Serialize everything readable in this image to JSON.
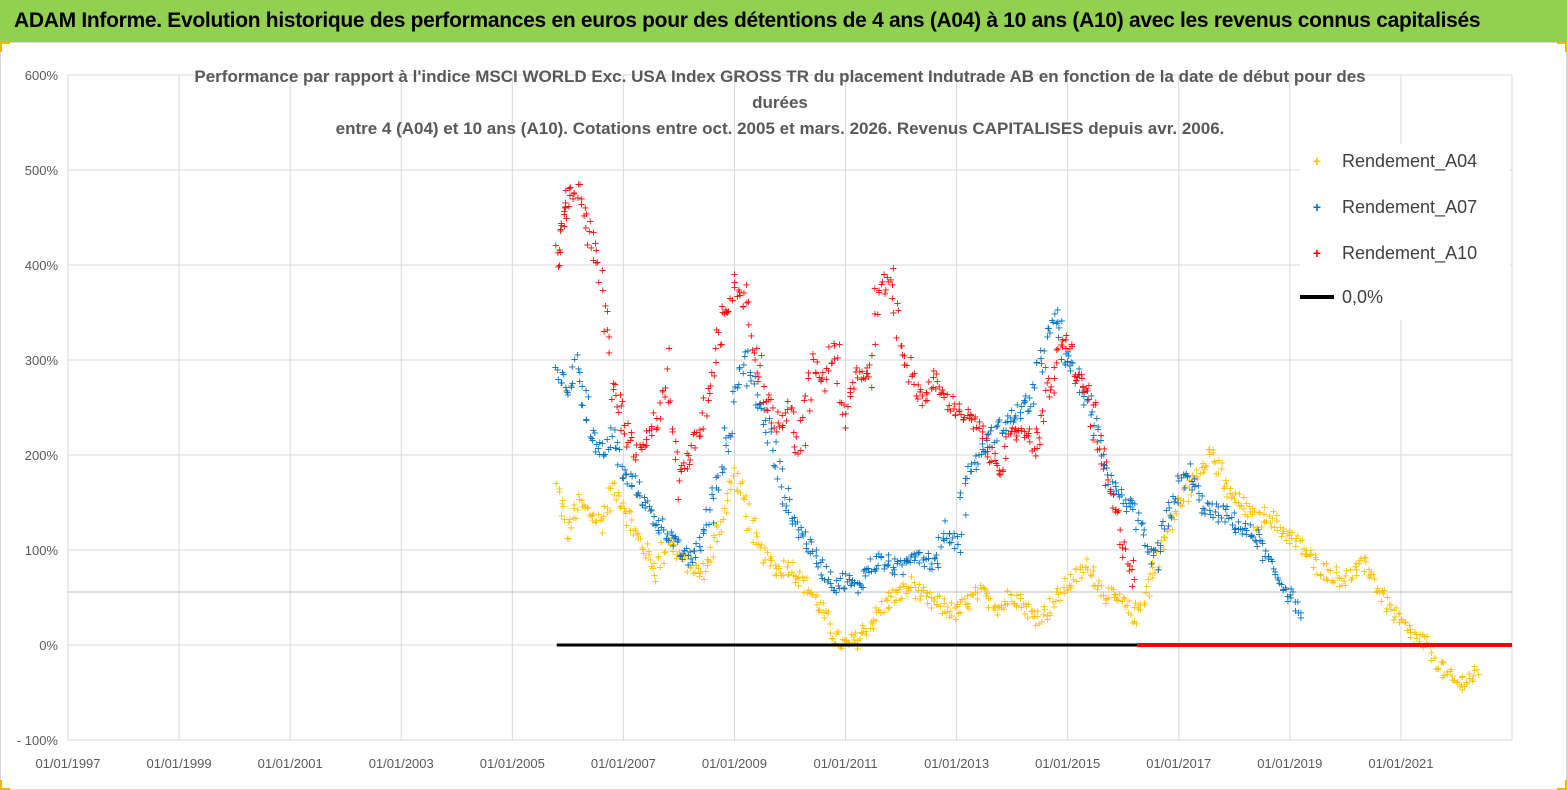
{
  "banner": {
    "title": "ADAM Informe. Evolution historique des performances en euros pour des détentions de 4 ans (A04) à 10 ans (A10) avec les revenus connus capitalisés"
  },
  "colors": {
    "banner_bg": "#92d050",
    "a04": "#ffc000",
    "a07": "#0070c0",
    "a10": "#ff0000",
    "zero": "#000000",
    "grid": "#d9d9d9"
  },
  "chart_data": {
    "type": "scatter",
    "title_lines": [
      "Performance par rapport à l'indice MSCI WORLD Exc. USA Index GROSS TR  du placement Indutrade AB en fonction de la date de début pour des",
      "durées",
      "entre 4 (A04) et 10 ans (A10). Cotations entre oct. 2005 et mars. 2026. Revenus CAPITALISES depuis avr. 2006."
    ],
    "x_ticks": [
      "01/01/1997",
      "01/01/1999",
      "01/01/2001",
      "01/01/2003",
      "01/01/2005",
      "01/01/2007",
      "01/01/2009",
      "01/01/2011",
      "01/01/2013",
      "01/01/2015",
      "01/01/2017",
      "01/01/2019",
      "01/01/2021"
    ],
    "xlim": [
      1997.0,
      2023.0
    ],
    "y_ticks": [
      "600%",
      "500%",
      "400%",
      "300%",
      "200%",
      "100%",
      "0%",
      "- 100%"
    ],
    "ylim": [
      -100,
      600
    ],
    "legend": [
      "Rendement_A04",
      "Rendement_A07",
      "Rendement_A10",
      "0,0%"
    ],
    "series": [
      {
        "name": "Rendement_A04",
        "x": [
          2005.8,
          2006.0,
          2006.2,
          2006.4,
          2006.6,
          2006.8,
          2007.0,
          2007.2,
          2007.4,
          2007.6,
          2007.8,
          2008.0,
          2008.2,
          2008.4,
          2008.6,
          2008.8,
          2009.0,
          2009.2,
          2009.4,
          2009.6,
          2009.8,
          2010.0,
          2010.2,
          2010.4,
          2010.6,
          2010.8,
          2011.0,
          2011.2,
          2011.4,
          2011.6,
          2011.8,
          2012.0,
          2012.2,
          2012.4,
          2012.6,
          2012.8,
          2013.0,
          2013.2,
          2013.4,
          2013.6,
          2013.8,
          2014.0,
          2014.2,
          2014.4,
          2014.6,
          2014.8,
          2015.0,
          2015.2,
          2015.4,
          2015.6,
          2015.8,
          2016.0,
          2016.2,
          2016.4,
          2016.6,
          2016.8,
          2017.0,
          2017.2,
          2017.4,
          2017.6,
          2017.8,
          2018.0,
          2018.2,
          2018.4,
          2018.6,
          2018.8,
          2019.0,
          2019.2,
          2019.4,
          2019.6,
          2019.8,
          2020.0,
          2020.2,
          2020.4,
          2020.6,
          2020.8,
          2021.0,
          2021.2,
          2021.4,
          2021.6,
          2021.8,
          2022.0,
          2022.2,
          2022.4
        ],
        "values": [
          165,
          120,
          150,
          140,
          130,
          165,
          150,
          120,
          100,
          80,
          115,
          95,
          85,
          75,
          100,
          140,
          180,
          150,
          105,
          90,
          80,
          85,
          70,
          55,
          35,
          10,
          0,
          5,
          20,
          35,
          50,
          55,
          65,
          50,
          45,
          40,
          35,
          45,
          55,
          50,
          40,
          55,
          45,
          30,
          35,
          50,
          65,
          75,
          85,
          60,
          50,
          45,
          30,
          55,
          90,
          120,
          150,
          165,
          190,
          205,
          170,
          155,
          145,
          130,
          140,
          125,
          115,
          105,
          90,
          80,
          75,
          70,
          80,
          85,
          60,
          40,
          25,
          10,
          5,
          -10,
          -30,
          -40,
          -35,
          -30
        ]
      },
      {
        "name": "Rendement_A07",
        "x": [
          2005.8,
          2006.0,
          2006.2,
          2006.4,
          2006.6,
          2006.8,
          2007.0,
          2007.2,
          2007.4,
          2007.6,
          2007.8,
          2008.0,
          2008.2,
          2008.4,
          2008.6,
          2008.8,
          2009.0,
          2009.2,
          2009.4,
          2009.6,
          2009.8,
          2010.0,
          2010.2,
          2010.4,
          2010.6,
          2010.8,
          2011.0,
          2011.2,
          2011.4,
          2011.6,
          2011.8,
          2012.0,
          2012.2,
          2012.4,
          2012.6,
          2012.8,
          2013.0,
          2013.2,
          2013.4,
          2013.6,
          2013.8,
          2014.0,
          2014.2,
          2014.4,
          2014.6,
          2014.8,
          2015.0,
          2015.2,
          2015.4,
          2015.6,
          2015.8,
          2016.0,
          2016.2,
          2016.4,
          2016.6,
          2016.8,
          2017.0,
          2017.2,
          2017.4,
          2017.6,
          2017.8,
          2018.0,
          2018.2,
          2018.4,
          2018.6,
          2018.8,
          2019.0,
          2019.2
        ],
        "values": [
          290,
          270,
          300,
          230,
          200,
          220,
          180,
          170,
          150,
          130,
          120,
          100,
          90,
          110,
          150,
          200,
          270,
          300,
          260,
          230,
          180,
          140,
          120,
          100,
          80,
          65,
          70,
          60,
          80,
          90,
          85,
          80,
          100,
          95,
          85,
          120,
          110,
          180,
          200,
          220,
          230,
          240,
          250,
          260,
          320,
          345,
          300,
          280,
          250,
          210,
          170,
          155,
          140,
          100,
          90,
          130,
          170,
          180,
          150,
          140,
          140,
          130,
          120,
          115,
          90,
          70,
          55,
          35
        ]
      },
      {
        "name": "Rendement_A10",
        "x": [
          2005.8,
          2005.9,
          2006.0,
          2006.2,
          2006.4,
          2006.6,
          2006.8,
          2007.0,
          2007.2,
          2007.4,
          2007.6,
          2007.8,
          2008.0,
          2008.2,
          2008.4,
          2008.6,
          2008.8,
          2009.0,
          2009.2,
          2009.4,
          2009.6,
          2009.8,
          2010.0,
          2010.2,
          2010.4,
          2010.6,
          2010.8,
          2011.0,
          2011.2,
          2011.4,
          2011.6,
          2011.8,
          2012.0,
          2012.2,
          2012.4,
          2012.6,
          2012.8,
          2013.0,
          2013.2,
          2013.4,
          2013.6,
          2013.8,
          2014.0,
          2014.2,
          2014.4,
          2014.6,
          2014.8,
          2015.0,
          2015.2,
          2015.4,
          2015.6,
          2015.8,
          2016.0,
          2016.2
        ],
        "values": [
          400,
          440,
          470,
          480,
          430,
          380,
          280,
          240,
          200,
          220,
          240,
          280,
          180,
          200,
          230,
          280,
          340,
          380,
          360,
          310,
          260,
          230,
          250,
          200,
          300,
          280,
          320,
          250,
          290,
          280,
          370,
          390,
          320,
          280,
          260,
          280,
          260,
          250,
          240,
          230,
          200,
          190,
          220,
          230,
          210,
          250,
          300,
          320,
          280,
          260,
          200,
          150,
          110,
          70
        ]
      }
    ],
    "zero_line": {
      "name": "0,0%",
      "from": 2005.8,
      "red_from": 2016.25,
      "to": 2023.0,
      "value": 0
    }
  }
}
